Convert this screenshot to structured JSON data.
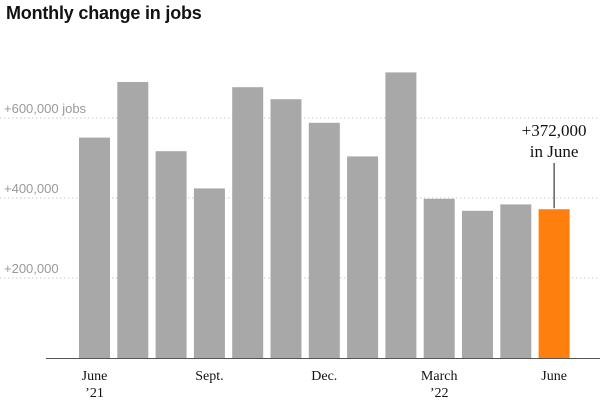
{
  "title": "Monthly change in jobs",
  "colors": {
    "bar": "#a8a8a8",
    "highlight": "#ff7f0e",
    "grid": "#c9c9c9",
    "tick_text": "#999999",
    "text": "#121212"
  },
  "chart_data": {
    "type": "bar",
    "title": "Monthly change in jobs",
    "xlabel": "",
    "ylabel": "",
    "ylim": [
      0,
      800000
    ],
    "grid": true,
    "y_ticks": [
      {
        "value": 200000,
        "label": "+200,000"
      },
      {
        "value": 400000,
        "label": "+400,000"
      },
      {
        "value": 600000,
        "label": "+600,000 jobs"
      }
    ],
    "categories": [
      "Jun 2021",
      "Jul 2021",
      "Aug 2021",
      "Sep 2021",
      "Oct 2021",
      "Nov 2021",
      "Dec 2021",
      "Jan 2022",
      "Feb 2022",
      "Mar 2022",
      "Apr 2022",
      "May 2022",
      "Jun 2022"
    ],
    "values": [
      551000,
      690000,
      517000,
      424000,
      677000,
      647000,
      588000,
      504000,
      714000,
      398000,
      368000,
      384000,
      372000
    ],
    "highlight_index": 12,
    "x_tick_labels": [
      {
        "index": 0,
        "line1": "June",
        "line2": "’21"
      },
      {
        "index": 3,
        "line1": "Sept.",
        "line2": ""
      },
      {
        "index": 6,
        "line1": "Dec.",
        "line2": ""
      },
      {
        "index": 9,
        "line1": "March",
        "line2": "’22"
      },
      {
        "index": 12,
        "line1": "June",
        "line2": ""
      }
    ],
    "annotation": {
      "index": 12,
      "line1": "+372,000",
      "line2": "in June"
    }
  }
}
